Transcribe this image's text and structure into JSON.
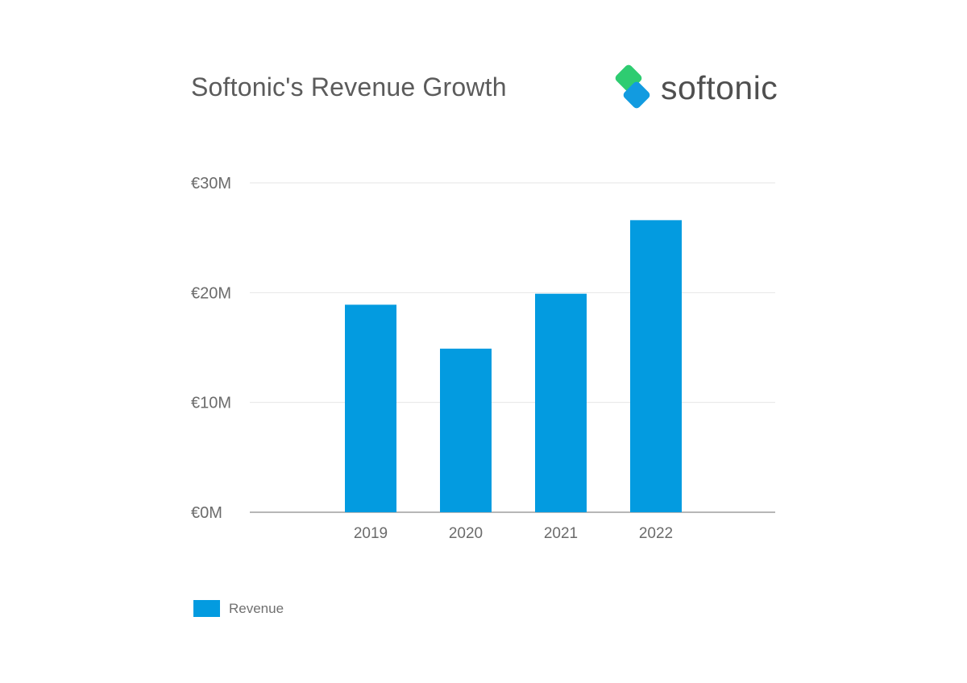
{
  "title": "Softonic's Revenue Growth",
  "brand": {
    "name": "softonic",
    "mark_colors": {
      "green": "#2ecc71",
      "blue": "#129be0"
    }
  },
  "colors": {
    "bar": "#039be0",
    "grid": "#e6e6e6",
    "axis": "#8c8c8c",
    "tick_text": "#6b6b6b"
  },
  "chart_data": {
    "type": "bar",
    "title": "Softonic's Revenue Growth",
    "categories": [
      "2019",
      "2020",
      "2021",
      "2022"
    ],
    "series": [
      {
        "name": "Revenue",
        "values": [
          18.9,
          14.9,
          19.9,
          26.6
        ]
      }
    ],
    "ylim": [
      0,
      30
    ],
    "yticks": [
      0,
      10,
      20,
      30
    ],
    "ytick_labels": [
      "€0M",
      "€10M",
      "€20M",
      "€30M"
    ],
    "xlabel": "",
    "ylabel": "",
    "grid": true,
    "legend_position": "bottom-left"
  }
}
